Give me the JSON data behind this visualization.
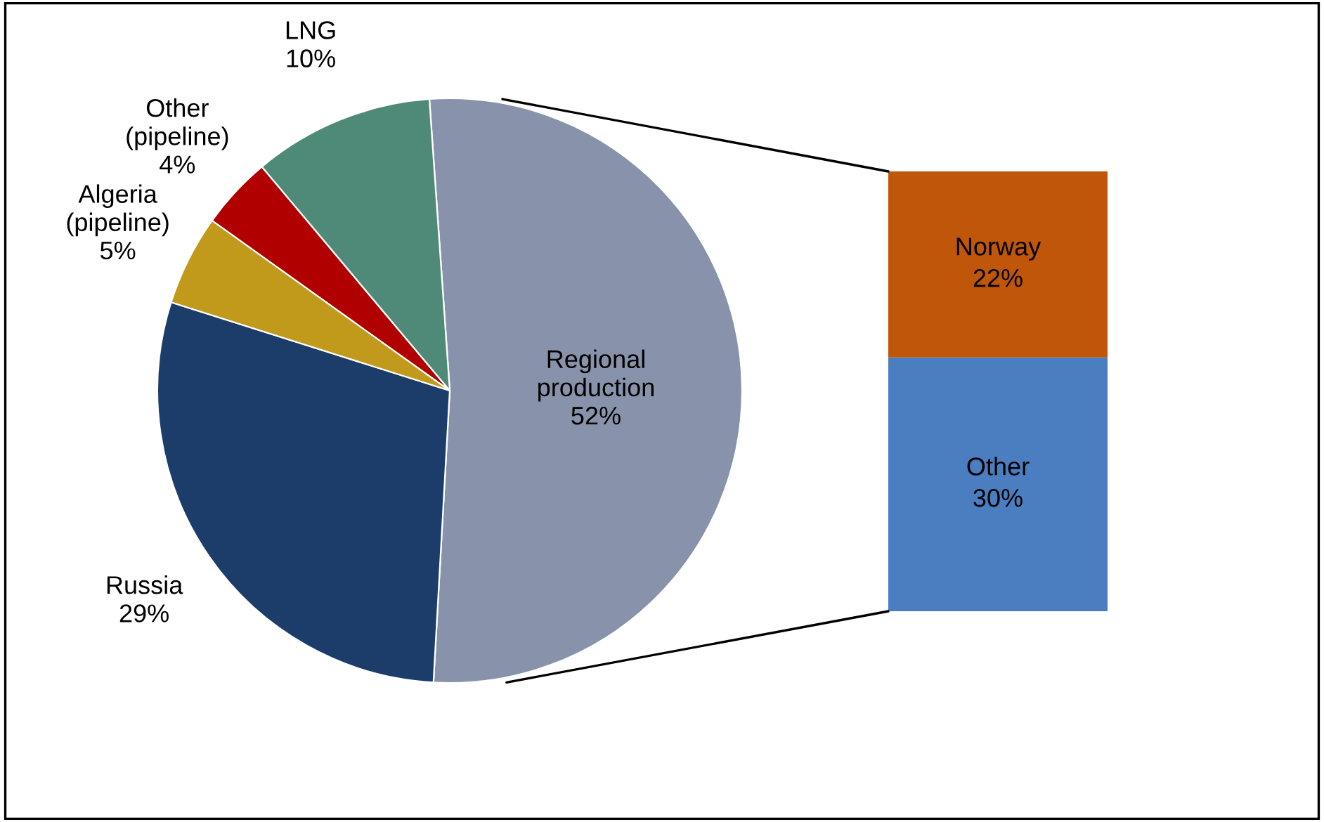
{
  "chart_data": [
    {
      "type": "pie",
      "categories": [
        "Regional production",
        "Russia",
        "Algeria (pipeline)",
        "Other (pipeline)",
        "LNG"
      ],
      "values": [
        52,
        29,
        5,
        4,
        10
      ],
      "colors": [
        "#8893ab",
        "#1c3d6a",
        "#c19a1b",
        "#b00000",
        "#4f8a78"
      ],
      "value_labels": [
        "52%",
        "29%",
        "5%",
        "4%",
        "10%"
      ]
    },
    {
      "type": "bar",
      "stacked": true,
      "categories": [
        null
      ],
      "series": [
        {
          "name": "Other",
          "color": "#4a7ec0",
          "values": [
            30
          ],
          "value_labels": [
            "30%"
          ]
        },
        {
          "name": "Norway",
          "color": "#c0560a",
          "values": [
            22
          ],
          "value_labels": [
            "22%"
          ]
        }
      ]
    }
  ]
}
